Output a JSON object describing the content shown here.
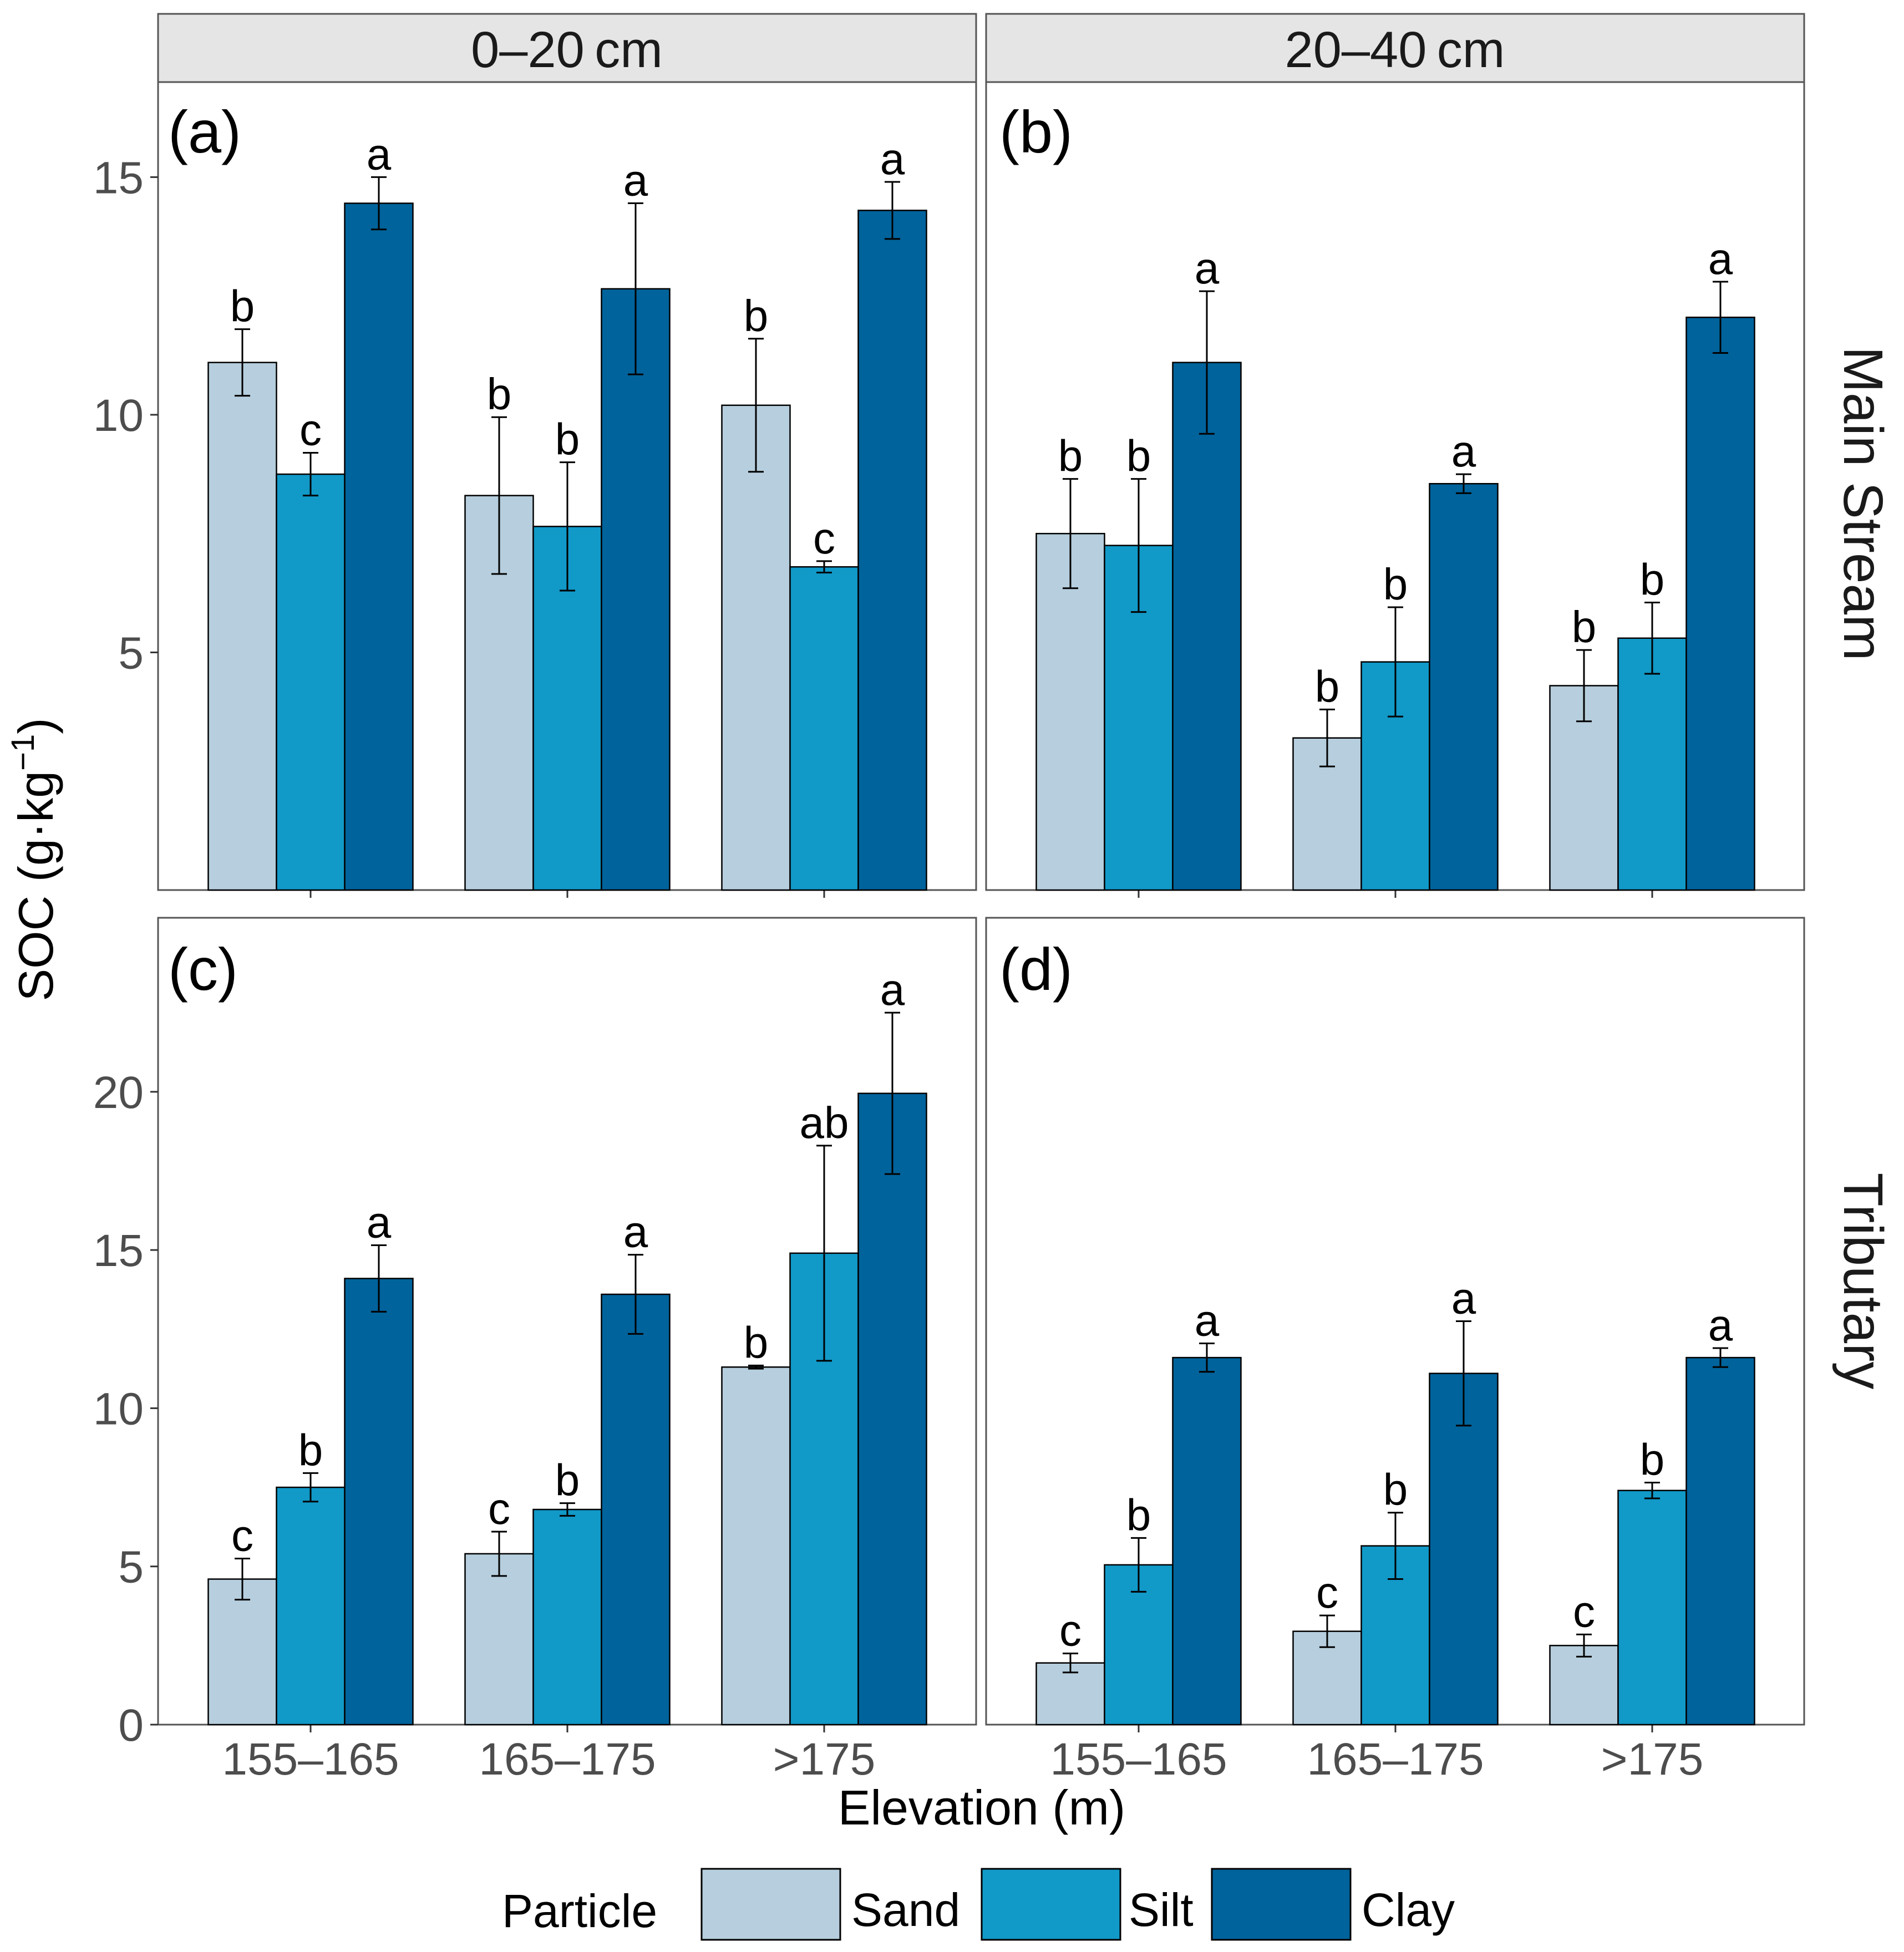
{
  "colors": {
    "sand": "#B6CEDD",
    "silt": "#1199C8",
    "clay": "#00639B",
    "strip": "#E5E5E5",
    "frame": "#555555"
  },
  "labels": {
    "col_strips": [
      "0–20 cm",
      "20–40 cm"
    ],
    "row_strips": [
      "Main Stream",
      "Tributary"
    ],
    "y_title": "SOC (g·kg",
    "y_title_sup": "−1",
    "y_title_close": ")",
    "x_title": "Elevation (m)",
    "legend_title": "Particle",
    "legend_items": [
      "Sand",
      "Silt",
      "Clay"
    ],
    "x_ticks": [
      "155–165",
      "165–175",
      ">175"
    ],
    "y_ticks_top": [
      "5",
      "10",
      "15"
    ],
    "y_ticks_bottom": [
      "0",
      "5",
      "10",
      "15",
      "20"
    ]
  },
  "chart_data": [
    {
      "type": "bar",
      "panel": "(a)",
      "depth": "0–20 cm",
      "stream": "Main Stream",
      "categories": [
        "155–165",
        "165–175",
        ">175"
      ],
      "ylim": [
        0,
        17
      ],
      "series": [
        {
          "name": "Sand",
          "values": [
            11.1,
            8.3,
            10.2
          ],
          "errors": [
            0.7,
            1.65,
            1.4
          ],
          "letters": [
            "b",
            "b",
            "b"
          ]
        },
        {
          "name": "Silt",
          "values": [
            8.75,
            7.65,
            6.8
          ],
          "errors": [
            0.45,
            1.35,
            0.12
          ],
          "letters": [
            "c",
            "b",
            "c"
          ]
        },
        {
          "name": "Clay",
          "values": [
            14.45,
            12.65,
            14.3
          ],
          "errors": [
            0.55,
            1.8,
            0.6
          ],
          "letters": [
            "a",
            "a",
            "a"
          ]
        }
      ]
    },
    {
      "type": "bar",
      "panel": "(b)",
      "depth": "20–40 cm",
      "stream": "Main Stream",
      "categories": [
        "155–165",
        "165–175",
        ">175"
      ],
      "ylim": [
        0,
        17
      ],
      "series": [
        {
          "name": "Sand",
          "values": [
            7.5,
            3.2,
            4.3
          ],
          "errors": [
            1.15,
            0.6,
            0.75
          ],
          "letters": [
            "b",
            "b",
            "b"
          ]
        },
        {
          "name": "Silt",
          "values": [
            7.25,
            4.8,
            5.3
          ],
          "errors": [
            1.4,
            1.15,
            0.75
          ],
          "letters": [
            "b",
            "b",
            "b"
          ]
        },
        {
          "name": "Clay",
          "values": [
            11.1,
            8.55,
            12.05
          ],
          "errors": [
            1.5,
            0.2,
            0.75
          ],
          "letters": [
            "a",
            "a",
            "a"
          ]
        }
      ]
    },
    {
      "type": "bar",
      "panel": "(c)",
      "depth": "0–20 cm",
      "stream": "Tributary",
      "categories": [
        "155–165",
        "165–175",
        ">175"
      ],
      "ylim": [
        0,
        25.5
      ],
      "series": [
        {
          "name": "Sand",
          "values": [
            4.6,
            5.4,
            11.3
          ],
          "errors": [
            0.65,
            0.7,
            0.05
          ],
          "letters": [
            "c",
            "c",
            "b"
          ]
        },
        {
          "name": "Silt",
          "values": [
            7.5,
            6.8,
            14.9
          ],
          "errors": [
            0.45,
            0.2,
            3.4
          ],
          "letters": [
            "b",
            "b",
            "ab"
          ]
        },
        {
          "name": "Clay",
          "values": [
            14.1,
            13.6,
            19.95
          ],
          "errors": [
            1.05,
            1.25,
            2.55
          ],
          "letters": [
            "a",
            "a",
            "a"
          ]
        }
      ]
    },
    {
      "type": "bar",
      "panel": "(d)",
      "depth": "20–40 cm",
      "stream": "Tributary",
      "categories": [
        "155–165",
        "165–175",
        ">175"
      ],
      "ylim": [
        0,
        25.5
      ],
      "series": [
        {
          "name": "Sand",
          "values": [
            1.95,
            2.95,
            2.5
          ],
          "errors": [
            0.3,
            0.5,
            0.35
          ],
          "letters": [
            "c",
            "c",
            "c"
          ]
        },
        {
          "name": "Silt",
          "values": [
            5.05,
            5.65,
            7.4
          ],
          "errors": [
            0.85,
            1.05,
            0.25
          ],
          "letters": [
            "b",
            "b",
            "b"
          ]
        },
        {
          "name": "Clay",
          "values": [
            11.6,
            11.1,
            11.6
          ],
          "errors": [
            0.45,
            1.65,
            0.3
          ],
          "letters": [
            "a",
            "a",
            "a"
          ]
        }
      ]
    }
  ],
  "panel_tags": [
    "(a)",
    "(b)",
    "(c)",
    "(d)"
  ]
}
